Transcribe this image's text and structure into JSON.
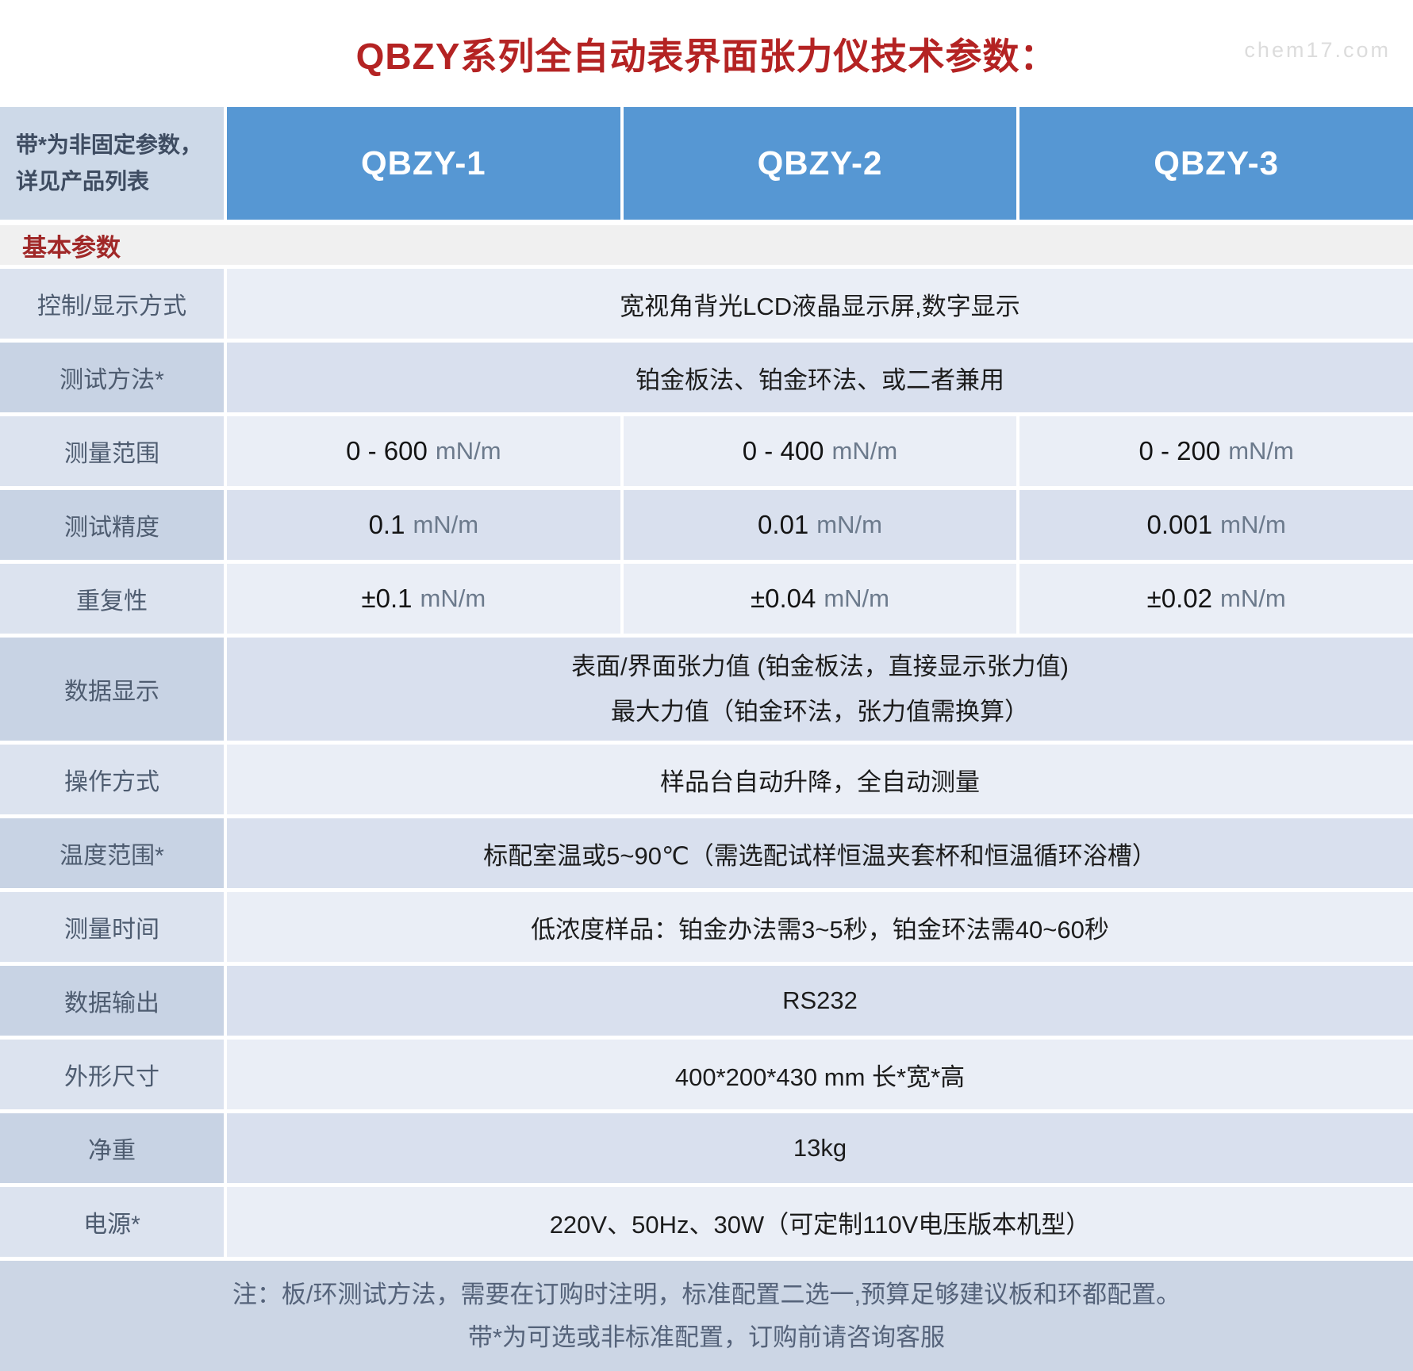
{
  "page": {
    "title": "QBZY系列全自动表界面张力仪技术参数：",
    "watermark": "chem17.com"
  },
  "colors": {
    "header_blue": "#5697d3",
    "title_red": "#b42323",
    "section_red": "#a02828",
    "row_light_label": "#dce3ef",
    "row_light_value": "#eaeef6",
    "row_dark_label": "#c8d3e4",
    "row_dark_value": "#d9e0ee",
    "footer_bg": "#ccd6e5"
  },
  "header": {
    "note_line1": "带*为非固定参数，",
    "note_line2": "详见产品列表",
    "columns": [
      "QBZY-1",
      "QBZY-2",
      "QBZY-3"
    ]
  },
  "section": {
    "label": "基本参数"
  },
  "rows": [
    {
      "label": "控制/显示方式",
      "span": "宽视角背光LCD液晶显示屏,数字显示"
    },
    {
      "label": "测试方法*",
      "span": "铂金板法、铂金环法、或二者兼用"
    },
    {
      "label": "测量范围",
      "values": [
        {
          "num": "0 - 600",
          "unit": "mN/m"
        },
        {
          "num": "0 - 400",
          "unit": "mN/m"
        },
        {
          "num": "0 - 200",
          "unit": "mN/m"
        }
      ]
    },
    {
      "label": "测试精度",
      "values": [
        {
          "num": "0.1",
          "unit": "mN/m"
        },
        {
          "num": "0.01",
          "unit": "mN/m"
        },
        {
          "num": "0.001",
          "unit": "mN/m"
        }
      ]
    },
    {
      "label": "重复性",
      "values": [
        {
          "num": "±0.1",
          "unit": "mN/m"
        },
        {
          "num": "±0.04",
          "unit": "mN/m"
        },
        {
          "num": "±0.02",
          "unit": "mN/m"
        }
      ]
    },
    {
      "label": "数据显示",
      "line1": "表面/界面张力值 (铂金板法，直接显示张力值)",
      "line2": "最大力值（铂金环法，张力值需换算）"
    },
    {
      "label": "操作方式",
      "span": "样品台自动升降，全自动测量"
    },
    {
      "label": "温度范围*",
      "span": "标配室温或5~90℃（需选配试样恒温夹套杯和恒温循环浴槽）"
    },
    {
      "label": "测量时间",
      "span": "低浓度样品：铂金办法需3~5秒，铂金环法需40~60秒"
    },
    {
      "label": "数据输出",
      "span": "RS232"
    },
    {
      "label": "外形尺寸",
      "span": "400*200*430 mm 长*宽*高"
    },
    {
      "label": "净重",
      "span": "13kg"
    },
    {
      "label": "电源*",
      "span": "220V、50Hz、30W（可定制110V电压版本机型）"
    }
  ],
  "footer": {
    "line1": "注：板/环测试方法，需要在订购时注明，标准配置二选一,预算足够建议板和环都配置。",
    "line2": "带*为可选或非标准配置，订购前请咨询客服"
  }
}
